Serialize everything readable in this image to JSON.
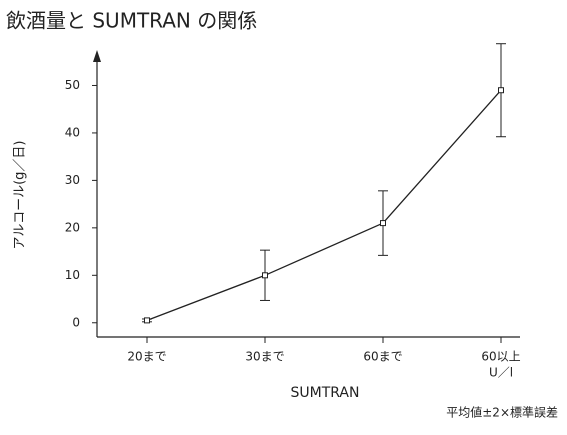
{
  "chart_data": {
    "type": "line",
    "title": "飲酒量と SUMTRAN の関係",
    "x_label": "SUMTRAN",
    "y_label": "アルコール(g／日)",
    "x_unit": "U／l",
    "note": "平均値±2×標準誤差",
    "categories": [
      "20まで",
      "30まで",
      "60まで",
      "60以上"
    ],
    "values": [
      0.5,
      10,
      21,
      49
    ],
    "errors": [
      0.3,
      5.3,
      6.8,
      9.8
    ],
    "color": "#222222",
    "ylim": [
      -3,
      56
    ],
    "yticks": [
      0,
      10,
      20,
      30,
      40,
      50
    ],
    "grid": false
  }
}
